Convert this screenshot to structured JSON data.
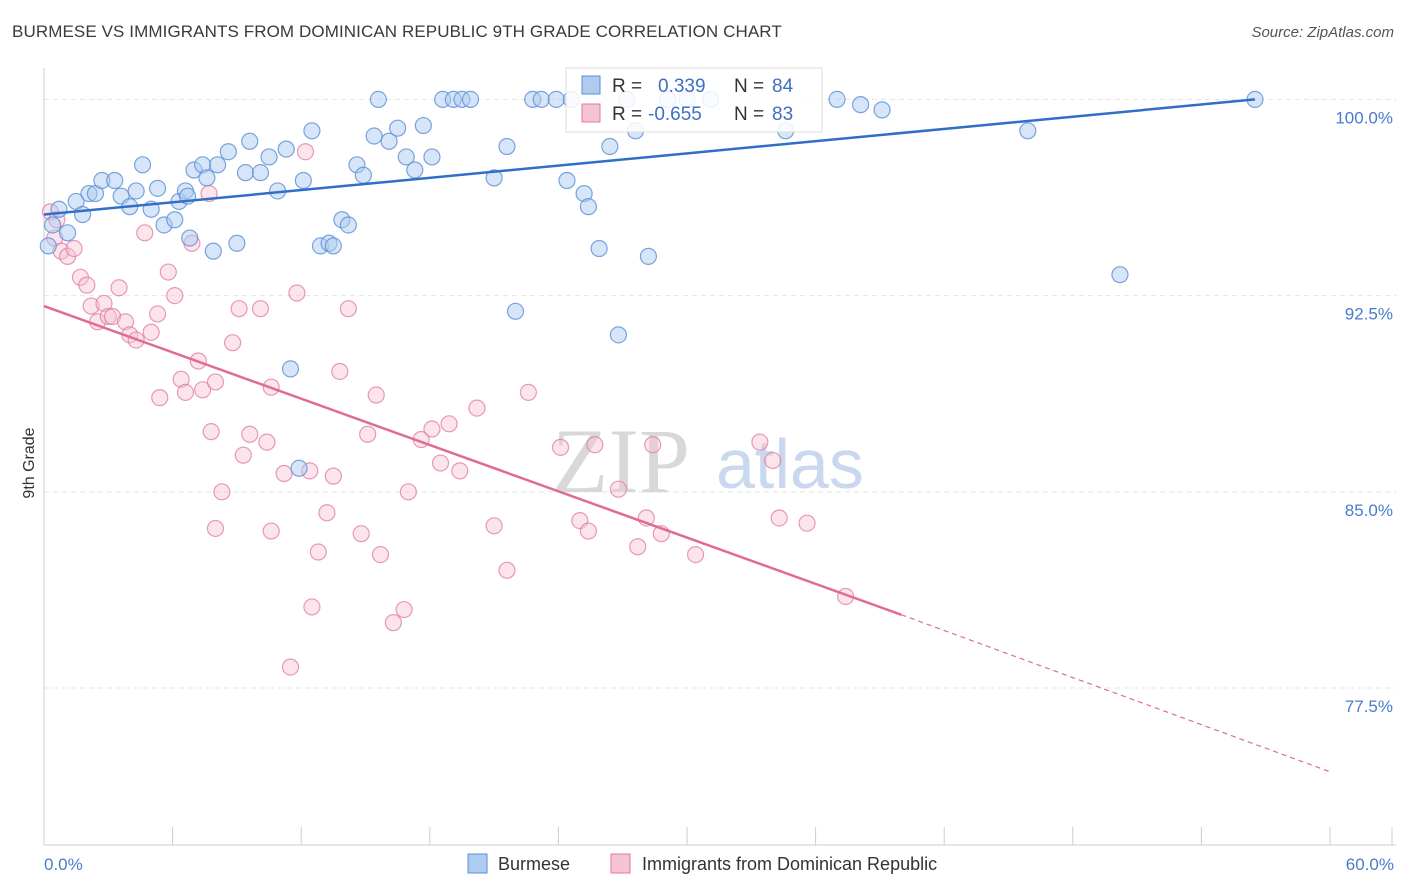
{
  "title": "BURMESE VS IMMIGRANTS FROM DOMINICAN REPUBLIC 9TH GRADE CORRELATION CHART",
  "source": "Source: ZipAtlas.com",
  "watermark": {
    "zip": "ZIP",
    "atlas": "atlas"
  },
  "colors": {
    "blue": "#5b8fd6",
    "blue_fill": "#aecbf0",
    "pink": "#e07aa0",
    "pink_fill": "#f6c3d5",
    "blue_line": "#2f6fc7",
    "pink_line": "#e06b97",
    "tick": "#4a7cc9"
  },
  "legend_box": {
    "rows": [
      {
        "r_label": "R =",
        "r_value": "0.339",
        "n_label": "N =",
        "n_value": "84"
      },
      {
        "r_label": "R =",
        "r_value": "-0.655",
        "n_label": "N =",
        "n_value": "83"
      }
    ]
  },
  "bottom_legend": [
    "Burmese",
    "Immigrants from Dominican Republic"
  ],
  "chart_data": {
    "type": "scatter",
    "title": "BURMESE VS IMMIGRANTS FROM DOMINICAN REPUBLIC 9TH GRADE CORRELATION CHART",
    "xlabel": "",
    "ylabel": "9th Grade",
    "xlim": [
      0,
      60
    ],
    "ylim": [
      71.5,
      101.2
    ],
    "x_tick_labels": [
      "0.0%",
      "60.0%"
    ],
    "y_ticks": [
      100.0,
      92.5,
      85.0,
      77.5
    ],
    "y_tick_labels": [
      "100.0%",
      "92.5%",
      "85.0%",
      "77.5%"
    ],
    "grid": true,
    "legend": "bottom",
    "series": [
      {
        "name": "Burmese",
        "color": "#5b8fd6",
        "trend": {
          "x": [
            0,
            56.5
          ],
          "y": [
            95.6,
            100.0
          ]
        },
        "points": [
          [
            0.2,
            94.4
          ],
          [
            0.4,
            95.2
          ],
          [
            0.7,
            95.8
          ],
          [
            1.1,
            94.9
          ],
          [
            1.5,
            96.1
          ],
          [
            1.8,
            95.6
          ],
          [
            2.1,
            96.4
          ],
          [
            2.4,
            96.4
          ],
          [
            2.7,
            96.9
          ],
          [
            3.3,
            96.9
          ],
          [
            3.6,
            96.3
          ],
          [
            4.0,
            95.9
          ],
          [
            4.3,
            96.5
          ],
          [
            4.6,
            97.5
          ],
          [
            5.0,
            95.8
          ],
          [
            5.3,
            96.6
          ],
          [
            5.6,
            95.2
          ],
          [
            6.1,
            95.4
          ],
          [
            6.3,
            96.1
          ],
          [
            6.6,
            96.5
          ],
          [
            6.7,
            96.3
          ],
          [
            6.8,
            94.7
          ],
          [
            7.0,
            97.3
          ],
          [
            7.4,
            97.5
          ],
          [
            7.6,
            97.0
          ],
          [
            7.9,
            94.2
          ],
          [
            8.1,
            97.5
          ],
          [
            8.6,
            98.0
          ],
          [
            9.0,
            94.5
          ],
          [
            9.4,
            97.2
          ],
          [
            9.6,
            98.4
          ],
          [
            10.1,
            97.2
          ],
          [
            10.5,
            97.8
          ],
          [
            10.9,
            96.5
          ],
          [
            11.3,
            98.1
          ],
          [
            11.5,
            89.7
          ],
          [
            11.9,
            85.9
          ],
          [
            12.1,
            96.9
          ],
          [
            12.5,
            98.8
          ],
          [
            12.9,
            94.4
          ],
          [
            13.3,
            94.5
          ],
          [
            13.5,
            94.4
          ],
          [
            13.9,
            95.4
          ],
          [
            14.2,
            95.2
          ],
          [
            14.6,
            97.5
          ],
          [
            14.9,
            97.1
          ],
          [
            15.4,
            98.6
          ],
          [
            15.6,
            100.0
          ],
          [
            16.1,
            98.4
          ],
          [
            16.5,
            98.9
          ],
          [
            16.9,
            97.8
          ],
          [
            17.3,
            97.3
          ],
          [
            17.7,
            99.0
          ],
          [
            18.1,
            97.8
          ],
          [
            18.6,
            100.0
          ],
          [
            19.1,
            100.0
          ],
          [
            19.5,
            100.0
          ],
          [
            19.9,
            100.0
          ],
          [
            21.0,
            97.0
          ],
          [
            21.6,
            98.2
          ],
          [
            22.0,
            91.9
          ],
          [
            22.8,
            100.0
          ],
          [
            23.2,
            100.0
          ],
          [
            23.9,
            100.0
          ],
          [
            24.4,
            96.9
          ],
          [
            24.6,
            100.0
          ],
          [
            25.2,
            96.4
          ],
          [
            25.4,
            95.9
          ],
          [
            25.9,
            94.3
          ],
          [
            26.4,
            98.2
          ],
          [
            26.8,
            91.0
          ],
          [
            27.2,
            100.0
          ],
          [
            27.6,
            98.8
          ],
          [
            28.2,
            94.0
          ],
          [
            29.1,
            100.0
          ],
          [
            30.0,
            100.0
          ],
          [
            31.1,
            100.0
          ],
          [
            34.6,
            98.8
          ],
          [
            37.0,
            100.0
          ],
          [
            38.1,
            99.8
          ],
          [
            39.1,
            99.6
          ],
          [
            45.9,
            98.8
          ],
          [
            50.2,
            93.3
          ],
          [
            56.5,
            100.0
          ]
        ]
      },
      {
        "name": "Immigrants from Dominican Republic",
        "color": "#e07aa0",
        "trend": {
          "x": [
            0,
            40
          ],
          "y": [
            92.1,
            80.3
          ]
        },
        "trend_dashed": {
          "x": [
            40,
            60
          ],
          "y": [
            80.3,
            74.3
          ]
        },
        "points": [
          [
            0.3,
            95.7
          ],
          [
            0.5,
            94.7
          ],
          [
            0.8,
            94.2
          ],
          [
            1.1,
            94.0
          ],
          [
            1.4,
            94.3
          ],
          [
            1.7,
            93.2
          ],
          [
            2.0,
            92.9
          ],
          [
            2.2,
            92.1
          ],
          [
            2.5,
            91.5
          ],
          [
            2.8,
            92.2
          ],
          [
            3.0,
            91.7
          ],
          [
            3.2,
            91.7
          ],
          [
            3.5,
            92.8
          ],
          [
            3.8,
            91.5
          ],
          [
            4.0,
            91.0
          ],
          [
            4.3,
            90.8
          ],
          [
            4.7,
            94.9
          ],
          [
            5.0,
            91.1
          ],
          [
            5.3,
            91.8
          ],
          [
            5.4,
            88.6
          ],
          [
            5.8,
            93.4
          ],
          [
            6.1,
            92.5
          ],
          [
            6.4,
            89.3
          ],
          [
            6.6,
            88.8
          ],
          [
            6.9,
            94.5
          ],
          [
            7.2,
            90.0
          ],
          [
            7.4,
            88.9
          ],
          [
            7.7,
            96.4
          ],
          [
            7.8,
            87.3
          ],
          [
            8.0,
            89.2
          ],
          [
            8.0,
            83.6
          ],
          [
            8.3,
            85.0
          ],
          [
            8.8,
            90.7
          ],
          [
            9.1,
            92.0
          ],
          [
            9.3,
            86.4
          ],
          [
            9.6,
            87.2
          ],
          [
            10.1,
            92.0
          ],
          [
            10.4,
            86.9
          ],
          [
            10.6,
            89.0
          ],
          [
            10.6,
            83.5
          ],
          [
            11.2,
            85.7
          ],
          [
            11.5,
            78.3
          ],
          [
            11.8,
            92.6
          ],
          [
            12.2,
            98.0
          ],
          [
            12.4,
            85.8
          ],
          [
            12.5,
            80.6
          ],
          [
            12.8,
            82.7
          ],
          [
            13.2,
            84.2
          ],
          [
            13.5,
            85.6
          ],
          [
            13.8,
            89.6
          ],
          [
            14.2,
            92.0
          ],
          [
            14.8,
            83.4
          ],
          [
            15.1,
            87.2
          ],
          [
            15.5,
            88.7
          ],
          [
            15.7,
            82.6
          ],
          [
            16.3,
            80.0
          ],
          [
            16.8,
            80.5
          ],
          [
            17.0,
            85.0
          ],
          [
            17.6,
            87.0
          ],
          [
            18.1,
            87.4
          ],
          [
            18.5,
            86.1
          ],
          [
            18.9,
            87.6
          ],
          [
            19.4,
            85.8
          ],
          [
            20.2,
            88.2
          ],
          [
            21.0,
            83.7
          ],
          [
            21.6,
            82.0
          ],
          [
            22.6,
            88.8
          ],
          [
            24.1,
            86.7
          ],
          [
            25.0,
            83.9
          ],
          [
            25.4,
            83.5
          ],
          [
            25.7,
            86.8
          ],
          [
            26.8,
            85.1
          ],
          [
            27.7,
            82.9
          ],
          [
            28.1,
            84.0
          ],
          [
            28.4,
            86.8
          ],
          [
            28.8,
            83.4
          ],
          [
            30.4,
            82.6
          ],
          [
            33.4,
            86.9
          ],
          [
            34.0,
            86.2
          ],
          [
            34.3,
            84.0
          ],
          [
            35.6,
            83.8
          ],
          [
            37.4,
            81.0
          ],
          [
            0.6,
            95.4
          ]
        ]
      }
    ]
  }
}
